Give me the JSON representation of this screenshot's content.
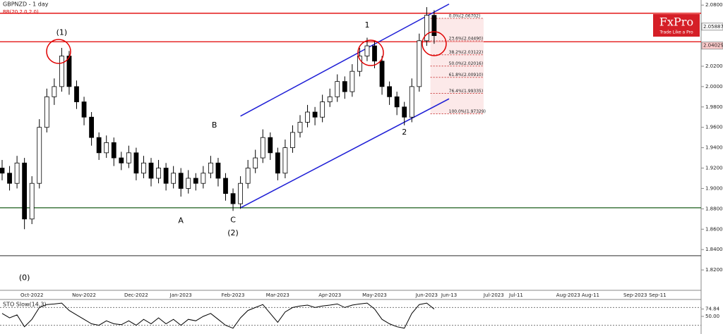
{
  "logo": {
    "name": "FxPro",
    "tagline": "Trade Like a Pro"
  },
  "chart_data": [
    {
      "type": "candlestick",
      "title": "GBPNZD - 1 day",
      "subtitle": "BB(20,2.0,2.0)",
      "categories": [
        null,
        null,
        null,
        null,
        "Oct-2022",
        null,
        null,
        null,
        null,
        null,
        null,
        "Nov-2022",
        null,
        null,
        null,
        null,
        null,
        null,
        "Dec-2022",
        null,
        null,
        null,
        null,
        null,
        "Jan-2023",
        null,
        null,
        null,
        null,
        null,
        null,
        "Feb-2023",
        null,
        null,
        null,
        null,
        null,
        "Mar-2023",
        null,
        null,
        null,
        null,
        null,
        null,
        "Apr-2023",
        null,
        null,
        null,
        null,
        null,
        "May-2023",
        null,
        null,
        null,
        null,
        null,
        null,
        "Jun-2023",
        null,
        null,
        "Jun-13",
        null,
        null,
        null,
        null,
        null,
        "Jul-2023",
        null,
        null,
        "Jul-11",
        null,
        null,
        null,
        null,
        null,
        null,
        "Aug-2023",
        null,
        null,
        "Aug-11",
        null,
        null,
        null,
        null,
        null,
        "Sep-2023",
        null,
        null,
        "Sep-11",
        null,
        null,
        null,
        null,
        null
      ],
      "open": [
        1.92,
        1.915,
        1.905,
        1.925,
        1.87,
        1.905,
        1.96,
        1.99,
        2.0,
        2.03,
        2.0,
        1.985,
        1.97,
        1.95,
        1.935,
        1.945,
        1.93,
        1.925,
        1.935,
        1.915,
        1.925,
        1.91,
        1.92,
        1.905,
        1.915,
        1.9,
        1.91,
        1.905,
        1.915,
        1.925,
        1.91,
        1.895,
        1.885,
        1.905,
        1.92,
        1.93,
        1.95,
        1.935,
        1.915,
        1.94,
        1.955,
        1.965,
        1.975,
        1.97,
        1.985,
        1.99,
        2.005,
        1.995,
        2.015,
        2.03,
        2.04,
        2.025,
        2.0,
        1.99,
        1.98,
        1.97,
        2.0,
        2.045,
        2.07,
        null,
        null,
        null,
        null,
        null,
        null,
        null,
        null,
        null,
        null,
        null,
        null,
        null,
        null,
        null,
        null,
        null,
        null,
        null,
        null,
        null,
        null,
        null,
        null,
        null,
        null,
        null,
        null,
        null,
        null,
        null,
        null,
        null,
        null,
        null
      ],
      "high": [
        1.928,
        1.922,
        1.932,
        1.93,
        1.912,
        1.968,
        1.998,
        2.008,
        2.038,
        2.035,
        2.006,
        1.99,
        1.975,
        1.955,
        1.952,
        1.95,
        1.936,
        1.942,
        1.94,
        1.932,
        1.93,
        1.928,
        1.925,
        1.922,
        1.92,
        1.918,
        1.915,
        1.922,
        1.932,
        1.93,
        1.915,
        1.9,
        1.912,
        1.928,
        1.938,
        1.958,
        1.955,
        1.94,
        1.948,
        1.962,
        1.972,
        1.982,
        1.98,
        1.992,
        1.998,
        2.012,
        2.01,
        2.022,
        2.038,
        2.048,
        2.045,
        2.03,
        2.005,
        1.995,
        1.985,
        2.008,
        2.052,
        2.078,
        2.075,
        null,
        null,
        null,
        null,
        null,
        null,
        null,
        null,
        null,
        null,
        null,
        null,
        null,
        null,
        null,
        null,
        null,
        null,
        null,
        null,
        null,
        null,
        null,
        null,
        null,
        null,
        null,
        null,
        null,
        null,
        null,
        null,
        null,
        null,
        null
      ],
      "low": [
        1.908,
        1.898,
        1.9,
        1.86,
        1.865,
        1.9,
        1.955,
        1.982,
        1.995,
        1.992,
        1.978,
        1.962,
        1.942,
        1.928,
        1.93,
        1.922,
        1.918,
        1.92,
        1.908,
        1.91,
        1.902,
        1.905,
        1.898,
        1.9,
        1.892,
        1.895,
        1.898,
        1.9,
        1.91,
        1.902,
        1.888,
        1.878,
        1.88,
        1.9,
        1.915,
        1.925,
        1.928,
        1.908,
        1.91,
        1.935,
        1.95,
        1.96,
        1.962,
        1.965,
        1.98,
        1.985,
        1.988,
        1.99,
        2.01,
        2.025,
        2.018,
        1.992,
        1.982,
        1.972,
        1.962,
        1.965,
        1.995,
        2.04,
        2.042,
        null,
        null,
        null,
        null,
        null,
        null,
        null,
        null,
        null,
        null,
        null,
        null,
        null,
        null,
        null,
        null,
        null,
        null,
        null,
        null,
        null,
        null,
        null,
        null,
        null,
        null,
        null,
        null,
        null,
        null,
        null,
        null,
        null,
        null,
        null
      ],
      "close": [
        1.915,
        1.905,
        1.925,
        1.87,
        1.905,
        1.96,
        1.99,
        2.0,
        2.03,
        2.0,
        1.985,
        1.97,
        1.95,
        1.935,
        1.945,
        1.93,
        1.925,
        1.935,
        1.915,
        1.925,
        1.91,
        1.92,
        1.905,
        1.915,
        1.9,
        1.91,
        1.905,
        1.915,
        1.925,
        1.91,
        1.895,
        1.885,
        1.905,
        1.92,
        1.93,
        1.95,
        1.935,
        1.915,
        1.94,
        1.955,
        1.965,
        1.975,
        1.97,
        1.985,
        1.99,
        2.005,
        1.995,
        2.015,
        2.03,
        2.04,
        2.025,
        2.0,
        1.99,
        1.98,
        1.97,
        2.0,
        2.045,
        2.07,
        2.05,
        null,
        null,
        null,
        null,
        null,
        null,
        null,
        null,
        null,
        null,
        null,
        null,
        null,
        null,
        null,
        null,
        null,
        null,
        null,
        null,
        null,
        null,
        null,
        null,
        null,
        null,
        null,
        null,
        null,
        null,
        null,
        null,
        null,
        null,
        null
      ],
      "up_color": "#ffffff",
      "down_color": "#000000",
      "ylim": [
        1.8,
        2.085
      ],
      "yticks": [
        {
          "value": 1.82,
          "label": "1.82000"
        },
        {
          "value": 1.84,
          "label": "1.84000"
        },
        {
          "value": 1.86,
          "label": "1.86000"
        },
        {
          "value": 1.88,
          "label": "1.88000"
        },
        {
          "value": 1.9,
          "label": "1.90000"
        },
        {
          "value": 1.92,
          "label": "1.92000"
        },
        {
          "value": 1.94,
          "label": "1.94000"
        },
        {
          "value": 1.96,
          "label": "1.96000"
        },
        {
          "value": 1.98,
          "label": "1.98000"
        },
        {
          "value": 2.0,
          "label": "2.00000"
        },
        {
          "value": 2.02,
          "label": "2.02000"
        },
        {
          "value": 2.04,
          "label": "2.04000"
        },
        {
          "value": 2.06,
          "label": "2.06000"
        },
        {
          "value": 2.08,
          "label": "2.08000"
        }
      ],
      "hlines": [
        {
          "value": 2.072,
          "color": "#e00000"
        },
        {
          "value": 2.044,
          "color": "#e00000"
        },
        {
          "value": 1.881,
          "color": "#1a5e1a"
        },
        {
          "value": 1.834,
          "color": "#555555"
        }
      ],
      "price_markers": [
        {
          "value": 2.05887,
          "color": "#ffffff"
        },
        {
          "value": 2.04029,
          "color": "#ffcccc"
        }
      ],
      "fib_levels": [
        {
          "label": "0.0%(2.06702)",
          "value": 2.06702
        },
        {
          "label": "23.6%(2.04490)",
          "value": 2.0449
        },
        {
          "label": "38.2%(2.03122)",
          "value": 2.03122
        },
        {
          "label": "50.0%(2.02016)",
          "value": 2.02016
        },
        {
          "label": "61.8%(2.00910)",
          "value": 2.0091
        },
        {
          "label": "76.4%(1.99335)",
          "value": 1.99335
        },
        {
          "label": "100.0%(1.97329)",
          "value": 1.97329
        }
      ],
      "trendlines": [
        {
          "color": "#1f1fd6",
          "points": [
            [
              32,
              1.971
            ],
            [
              60,
              2.081
            ]
          ]
        },
        {
          "color": "#1f1fd6",
          "points": [
            [
              32,
              1.881
            ],
            [
              60,
              1.988
            ]
          ]
        }
      ],
      "annotations": [
        {
          "text": "(1)",
          "x": 8,
          "y": 2.053
        },
        {
          "text": "(0)",
          "x": 3,
          "y": 1.812
        },
        {
          "text": "(2)",
          "x": 31,
          "y": 1.856
        },
        {
          "text": "1",
          "x": 49,
          "y": 2.06
        },
        {
          "text": "2",
          "x": 54,
          "y": 1.955
        },
        {
          "text": "A",
          "x": 24,
          "y": 1.868
        },
        {
          "text": "B",
          "x": 28.5,
          "y": 1.962
        },
        {
          "text": "C",
          "x": 31,
          "y": 1.869
        }
      ]
    },
    {
      "type": "line",
      "title": "STO Slow(14,3)",
      "color": "#000000",
      "values": [
        60,
        45,
        55,
        15,
        40,
        80,
        90,
        92,
        95,
        70,
        55,
        40,
        25,
        20,
        35,
        25,
        22,
        35,
        20,
        40,
        25,
        45,
        25,
        40,
        20,
        40,
        35,
        50,
        60,
        40,
        20,
        10,
        45,
        70,
        80,
        90,
        60,
        30,
        65,
        80,
        85,
        88,
        80,
        85,
        88,
        92,
        80,
        88,
        92,
        95,
        75,
        40,
        25,
        15,
        10,
        60,
        90,
        95,
        74.84
      ],
      "ylim": [
        0,
        100
      ],
      "yticks": [
        74.84,
        {
          "value": 50,
          "label": "50.00"
        }
      ],
      "levels": [
        80,
        20
      ]
    }
  ]
}
